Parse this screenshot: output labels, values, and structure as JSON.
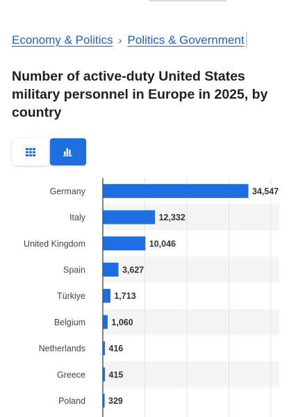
{
  "breadcrumb": {
    "item1": "Economy & Politics",
    "separator": "›",
    "item2": "Politics & Government"
  },
  "page": {
    "title": "Number of active-duty United States military personnel in Europe in 2025, by country"
  },
  "view_toggle": {
    "table_icon": "grid-icon",
    "chart_icon": "bar-chart-icon",
    "active": "chart"
  },
  "colors": {
    "bar": "#1f6ee0",
    "link": "#1f5fbf",
    "toggle_active": "#1f6ee0",
    "row_alt": "#f5f5f5"
  },
  "chart_data": {
    "type": "bar",
    "orientation": "horizontal",
    "categories": [
      "Germany",
      "Italy",
      "United Kingdom",
      "Spain",
      "Türkiye",
      "Belgium",
      "Netherlands",
      "Greece",
      "Poland"
    ],
    "values": [
      34547,
      12332,
      10046,
      3627,
      1713,
      1060,
      416,
      415,
      329
    ],
    "value_labels": [
      "34,547",
      "12,332",
      "10,046",
      "3,627",
      "1,713",
      "1,060",
      "416",
      "415",
      "329"
    ],
    "xlim": [
      0,
      40000
    ],
    "grid": true
  }
}
